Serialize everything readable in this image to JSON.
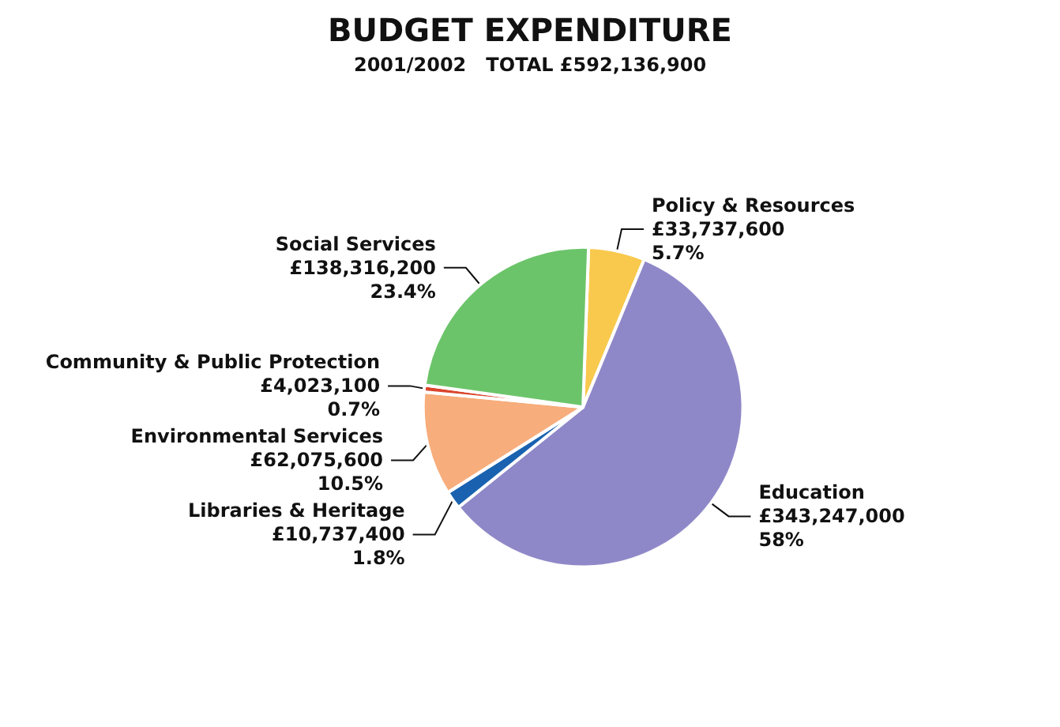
{
  "chart_data": {
    "type": "pie",
    "title": "BUDGET EXPENDITURE",
    "subtitle": "2001/2002   TOTAL £592,136,900",
    "categories": [
      "Policy & Resources",
      "Education",
      "Libraries & Heritage",
      "Environmental Services",
      "Community & Public Protection",
      "Social Services"
    ],
    "values": [
      33737600,
      343247000,
      10737400,
      62075600,
      4023100,
      138316200
    ],
    "colors": [
      "#f9c94e",
      "#8f88c8",
      "#1a62b0",
      "#f7ad7c",
      "#d9452b",
      "#6cc46a"
    ],
    "value_labels": [
      "£33,737,600\n5.7%",
      "£343,247,000\n58%",
      "£10,737,400\n1.8%",
      "£62,075,600\n10.5%",
      "£4,023,100\n0.7%",
      "£138,316,200\n23.4%"
    ]
  }
}
